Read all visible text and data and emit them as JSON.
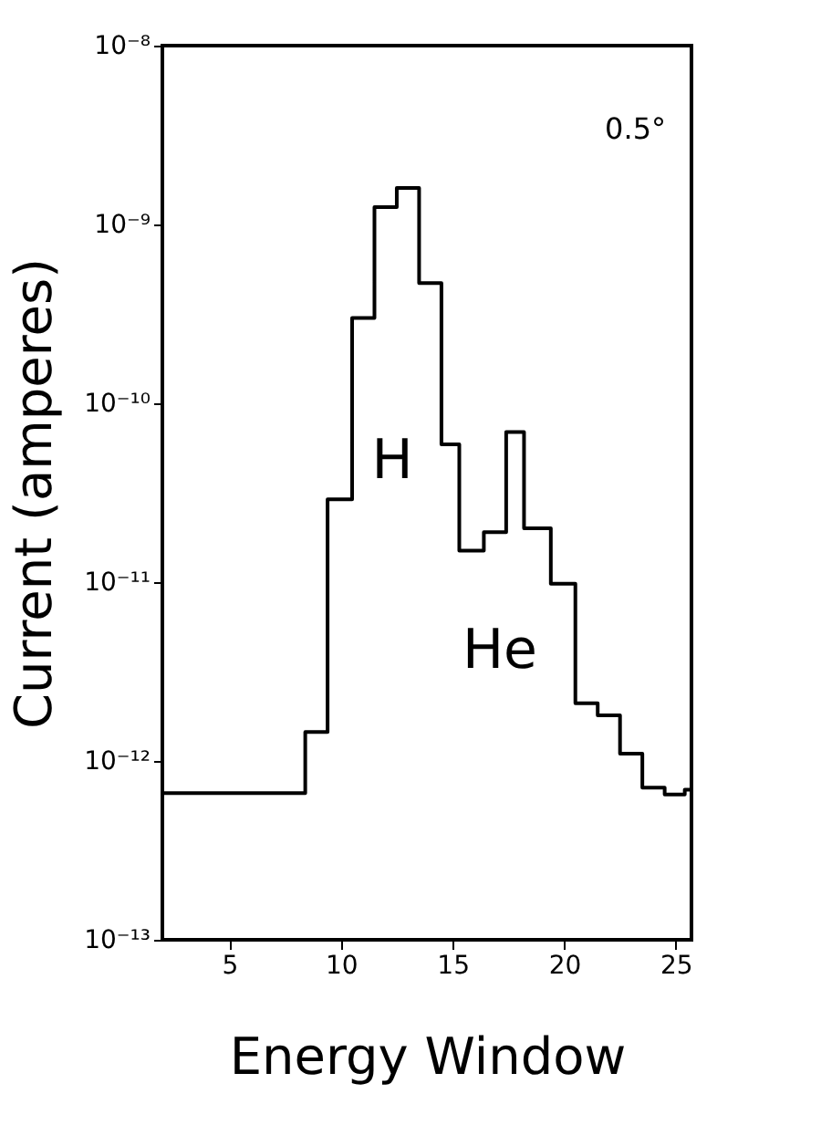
{
  "chart_data": {
    "type": "histogram",
    "xlabel": "Energy Window",
    "ylabel": "Current (amperes)",
    "log": "y",
    "color": "#000000",
    "bins": [
      2,
      8.4,
      9.4,
      10.5,
      11.5,
      12.5,
      13.5,
      14.5,
      15.3,
      16.4,
      17.4,
      18.2,
      19.4,
      20.5,
      21.5,
      22.5,
      23.5,
      24.5,
      25.4,
      25.7
    ],
    "values": [
      6.6e-13,
      1.45e-12,
      2.9e-11,
      3e-10,
      1.25e-09,
      1.6e-09,
      4.7e-10,
      5.9e-11,
      1.5e-11,
      1.9e-11,
      6.9e-11,
      2e-11,
      9.8e-12,
      2.1e-12,
      1.8e-12,
      1.1e-12,
      7.1e-13,
      6.5e-13,
      6.9e-13
    ],
    "xlim": [
      2,
      25.7
    ],
    "xticks": [
      5,
      10,
      15,
      20,
      25
    ],
    "ylim": [
      1e-13,
      1e-08
    ],
    "yticks": [
      {
        "value": 1e-13,
        "label": "10⁻¹³"
      },
      {
        "value": 1e-12,
        "label": "10⁻¹²"
      },
      {
        "value": 1e-11,
        "label": "10⁻¹¹"
      },
      {
        "value": 1e-10,
        "label": "10⁻¹⁰"
      },
      {
        "value": 1e-09,
        "label": "10⁻⁹"
      },
      {
        "value": 1e-08,
        "label": "10⁻⁸"
      }
    ],
    "grid": false,
    "annotations": [
      "0.5°",
      "H",
      "He"
    ]
  }
}
